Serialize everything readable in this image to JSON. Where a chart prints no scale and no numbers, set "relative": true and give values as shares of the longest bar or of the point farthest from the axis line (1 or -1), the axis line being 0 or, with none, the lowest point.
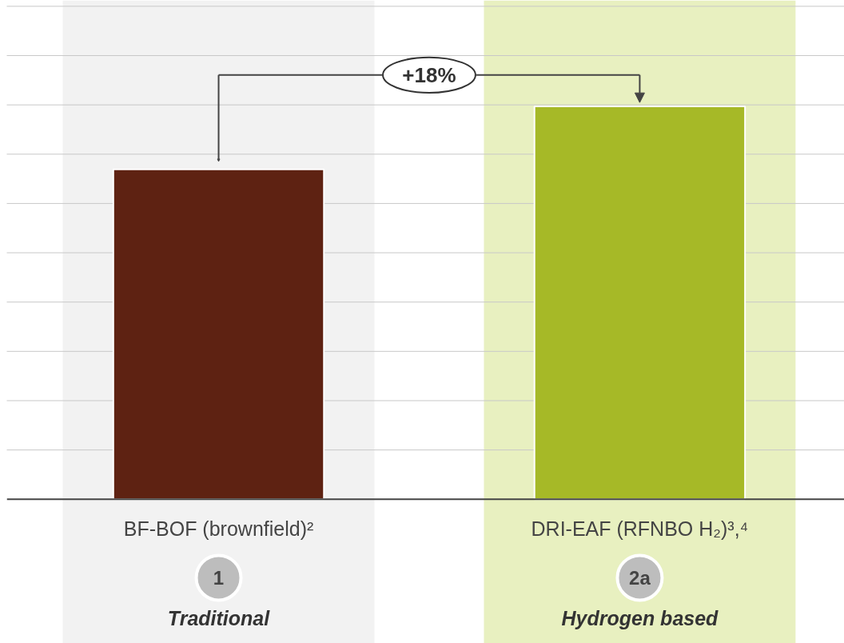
{
  "chart_data": {
    "type": "bar",
    "relative": true,
    "categories": [
      "BF-BOF (brownfield)²",
      "DRI-EAF (RFNBO H₂)³,⁴"
    ],
    "values": [
      0.84,
      1
    ],
    "colors": [
      "#5e2212",
      "#a6b927"
    ],
    "annotations": [
      "+18%",
      "1",
      "2a"
    ],
    "bands": [
      {
        "axis": "x",
        "from": "BF-BOF (brownfield)²",
        "to": "BF-BOF (brownfield)²",
        "label": "Traditional",
        "color": "#f2f2f2"
      },
      {
        "axis": "x",
        "from": "DRI-EAF (RFNBO H₂)³,⁴",
        "to": "DRI-EAF (RFNBO H₂)³,⁴",
        "label": "Hydrogen based",
        "color": "#e8f0c0"
      }
    ],
    "grid": "y"
  }
}
